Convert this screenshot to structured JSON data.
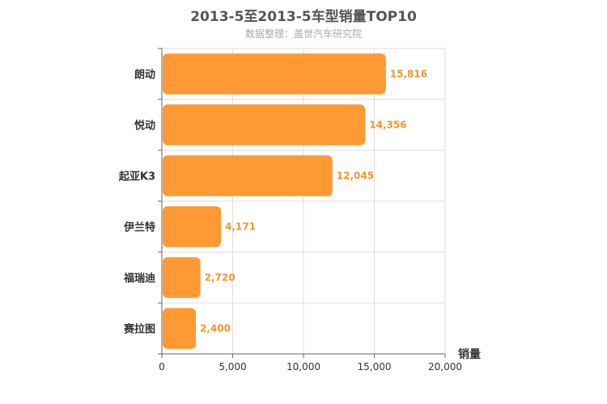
{
  "chart_data": {
    "type": "bar",
    "orientation": "horizontal",
    "title": "2013-5至2013-5车型销量TOP10",
    "subtitle": "数据整理：盖世汽车研究院",
    "xlabel": "销量",
    "ylabel": "",
    "categories": [
      "朗动",
      "悦动",
      "起亚K3",
      "伊兰特",
      "福瑞迪",
      "赛拉图"
    ],
    "values": [
      15816,
      14356,
      12045,
      4171,
      2720,
      2400
    ],
    "value_labels": [
      "15,816",
      "14,356",
      "12,045",
      "4,171",
      "2,720",
      "2,400"
    ],
    "xlim": [
      0,
      20000
    ],
    "xticks": [
      0,
      5000,
      10000,
      15000,
      20000
    ],
    "xtick_labels": [
      "0",
      "5,000",
      "10,000",
      "15,000",
      "20,000"
    ],
    "grid": true,
    "legend": "none",
    "bar_color": "#ff9933",
    "label_color": "#f0962a"
  }
}
